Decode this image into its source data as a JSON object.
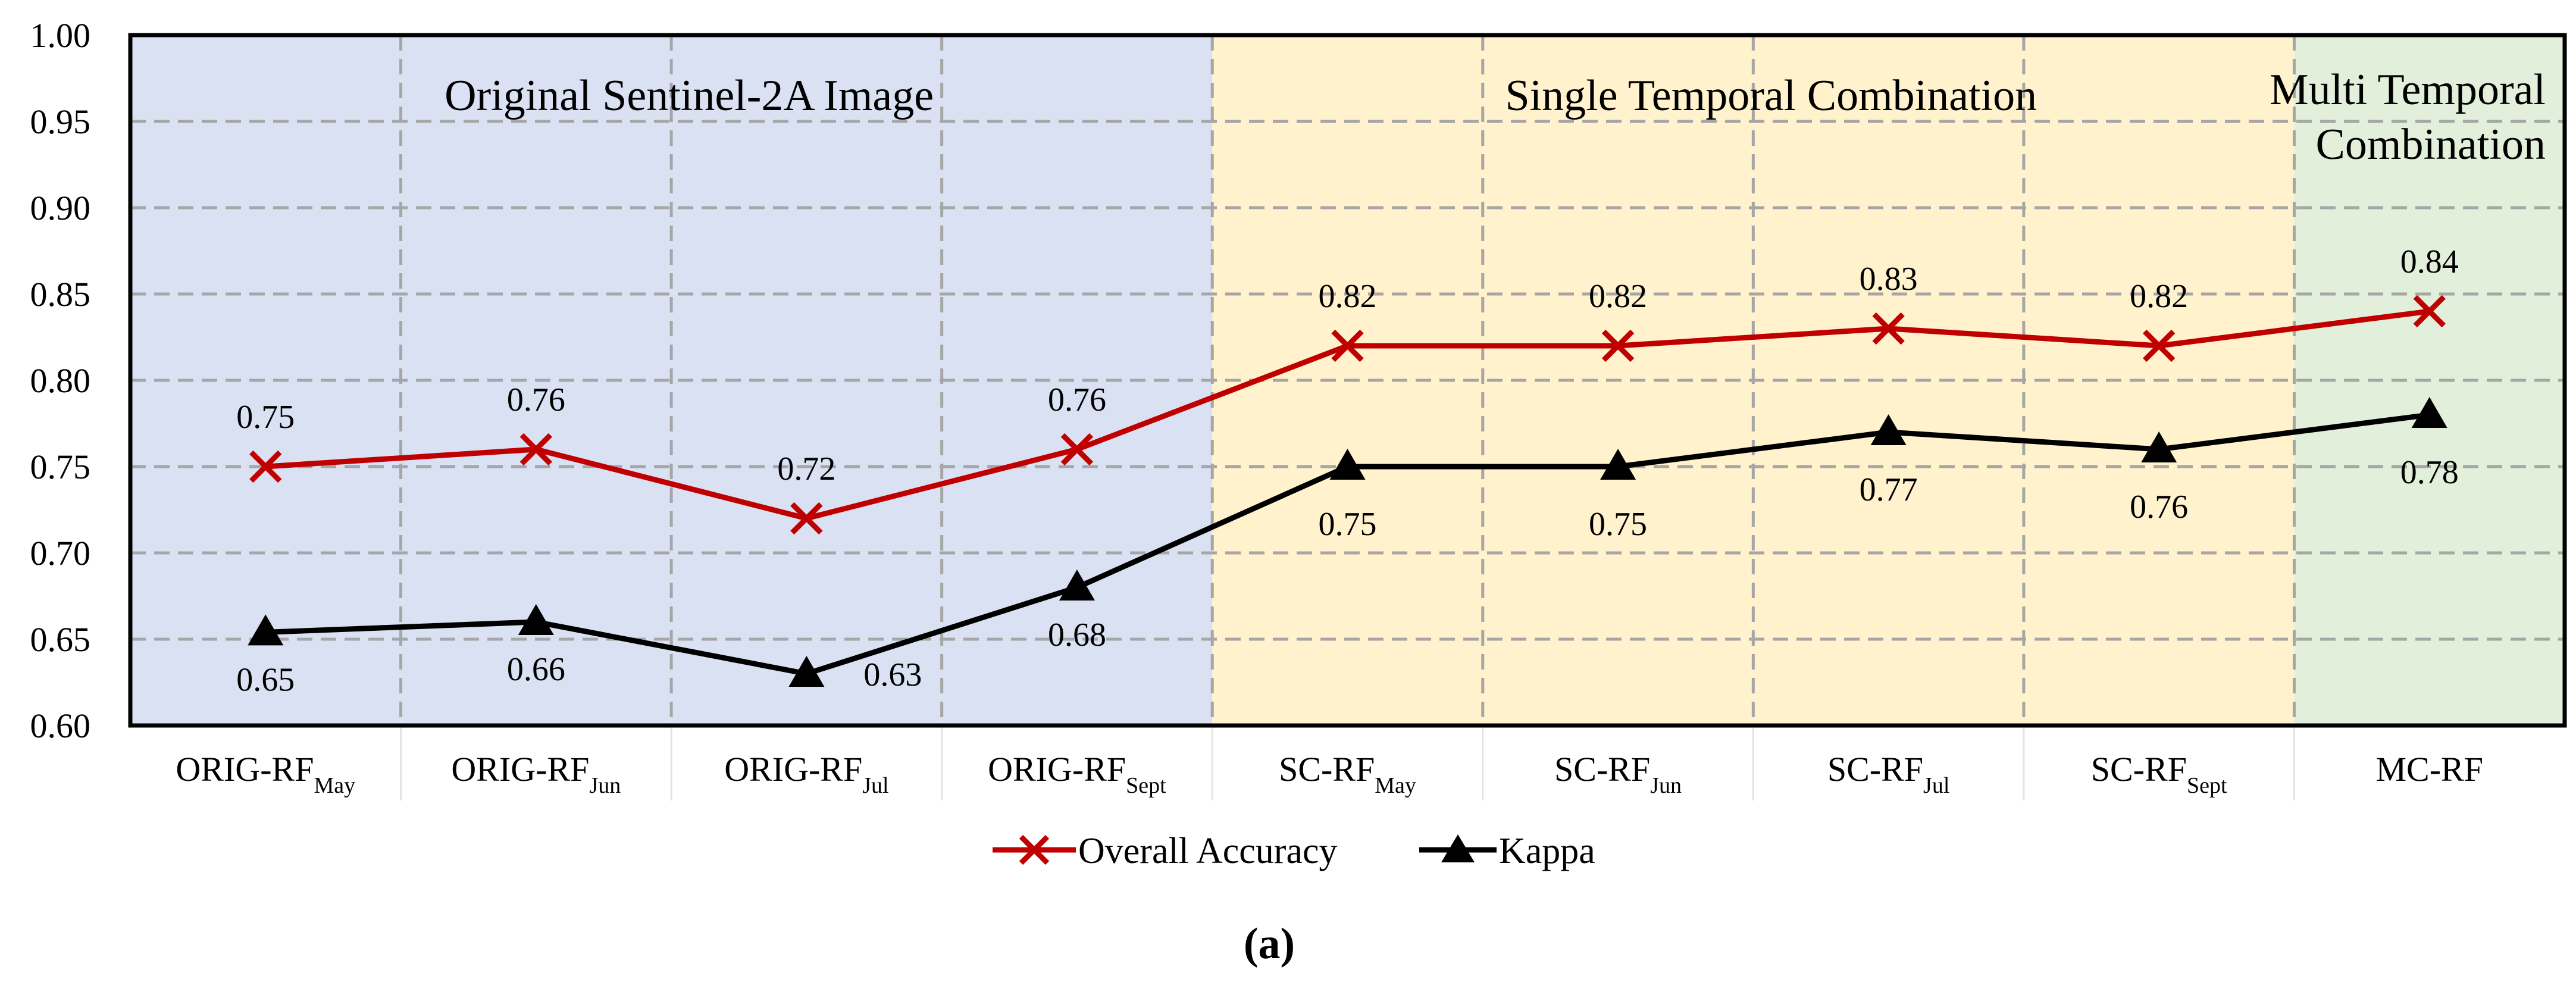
{
  "chart_data": {
    "type": "line",
    "categories": [
      {
        "base": "ORIG-RF",
        "sub": "May"
      },
      {
        "base": "ORIG-RF",
        "sub": "Jun"
      },
      {
        "base": "ORIG-RF",
        "sub": "Jul"
      },
      {
        "base": "ORIG-RF",
        "sub": "Sept"
      },
      {
        "base": "SC-RF",
        "sub": "May"
      },
      {
        "base": "SC-RF",
        "sub": "Jun"
      },
      {
        "base": "SC-RF",
        "sub": "Jul"
      },
      {
        "base": "SC-RF",
        "sub": "Sept"
      },
      {
        "base": "MC-RF",
        "sub": ""
      }
    ],
    "series": [
      {
        "name": "Overall Accuracy",
        "color": "#c00000",
        "marker": "x",
        "values": [
          0.75,
          0.76,
          0.72,
          0.76,
          0.82,
          0.82,
          0.83,
          0.82,
          0.84
        ],
        "labels": [
          "0.75",
          "0.76",
          "0.72",
          "0.76",
          "0.82",
          "0.82",
          "0.83",
          "0.82",
          "0.84"
        ]
      },
      {
        "name": "Kappa",
        "color": "#000000",
        "marker": "triangle",
        "values": [
          0.654,
          0.66,
          0.63,
          0.68,
          0.75,
          0.75,
          0.77,
          0.76,
          0.78
        ],
        "labels": [
          "0.65",
          "0.66",
          "0.63",
          "0.68",
          "0.75",
          "0.75",
          "0.77",
          "0.76",
          "0.78"
        ]
      }
    ],
    "yticks": [
      "0.60",
      "0.65",
      "0.70",
      "0.75",
      "0.80",
      "0.85",
      "0.90",
      "0.95",
      "1.00"
    ],
    "ylim": [
      0.6,
      1.0
    ],
    "grid": true,
    "regions": [
      {
        "title_lines": [
          "Original Sentinel-2A Image"
        ],
        "start": 0,
        "end": 3,
        "color": "#d9e1f2"
      },
      {
        "title_lines": [
          "Single Temporal Combination"
        ],
        "start": 4,
        "end": 7,
        "color": "#fff2cc"
      },
      {
        "title_lines": [
          "Multi Temporal",
          "Combination"
        ],
        "start": 8,
        "end": 8,
        "color": "#e2efda"
      }
    ],
    "legend_position": "bottom-center",
    "caption": "(a)"
  }
}
